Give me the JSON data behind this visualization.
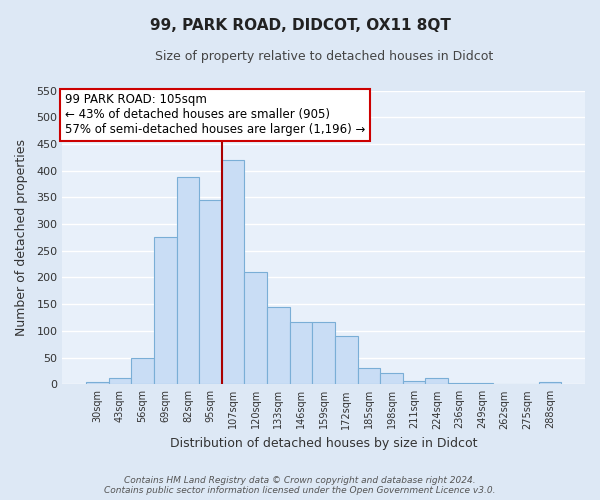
{
  "title": "99, PARK ROAD, DIDCOT, OX11 8QT",
  "subtitle": "Size of property relative to detached houses in Didcot",
  "xlabel": "Distribution of detached houses by size in Didcot",
  "ylabel": "Number of detached properties",
  "categories": [
    "30sqm",
    "43sqm",
    "56sqm",
    "69sqm",
    "82sqm",
    "95sqm",
    "107sqm",
    "120sqm",
    "133sqm",
    "146sqm",
    "159sqm",
    "172sqm",
    "185sqm",
    "198sqm",
    "211sqm",
    "224sqm",
    "236sqm",
    "249sqm",
    "262sqm",
    "275sqm",
    "288sqm"
  ],
  "values": [
    5,
    12,
    49,
    275,
    388,
    345,
    420,
    210,
    145,
    117,
    117,
    90,
    31,
    22,
    6,
    12,
    3,
    2,
    0,
    1,
    4
  ],
  "bar_color": "#c9ddf5",
  "bar_edge_color": "#7aaed6",
  "vline_color": "#aa0000",
  "vline_index": 6,
  "ylim_max": 550,
  "yticks": [
    0,
    50,
    100,
    150,
    200,
    250,
    300,
    350,
    400,
    450,
    500,
    550
  ],
  "annotation_title": "99 PARK ROAD: 105sqm",
  "annotation_line1": "← 43% of detached houses are smaller (905)",
  "annotation_line2": "57% of semi-detached houses are larger (1,196) →",
  "annotation_box_facecolor": "#ffffff",
  "annotation_box_edgecolor": "#cc0000",
  "footer1": "Contains HM Land Registry data © Crown copyright and database right 2024.",
  "footer2": "Contains public sector information licensed under the Open Government Licence v3.0.",
  "fig_facecolor": "#dde8f5",
  "plot_facecolor": "#e8f0fa",
  "grid_color": "#ffffff",
  "title_color": "#222222",
  "subtitle_color": "#444444",
  "axis_label_color": "#333333",
  "tick_color": "#333333",
  "footer_color": "#555555"
}
